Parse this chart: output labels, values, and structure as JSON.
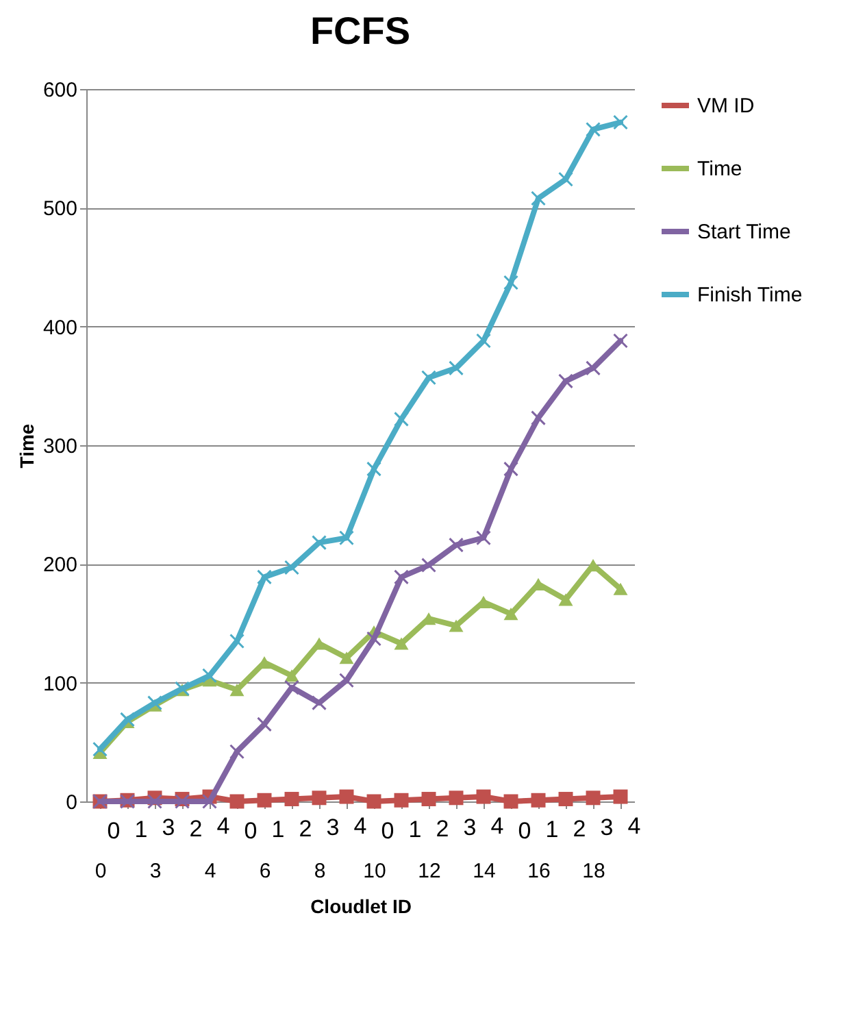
{
  "chart_data": {
    "type": "line",
    "title": "FCFS",
    "xlabel": "Cloudlet ID",
    "ylabel": "Time",
    "categories": [
      "0",
      null,
      "3",
      null,
      "4",
      null,
      "6",
      null,
      "8",
      null,
      "10",
      null,
      "12",
      null,
      "14",
      null,
      "16",
      null,
      "18",
      null
    ],
    "series": [
      {
        "name": "VM ID",
        "color": "#c0504d",
        "marker": "square",
        "values": [
          0,
          1,
          3,
          2,
          4,
          0,
          1,
          2,
          3,
          4,
          0,
          1,
          2,
          3,
          4,
          0,
          1,
          2,
          3,
          4
        ],
        "value_labels": [
          "0",
          "1",
          "3",
          "2",
          "4",
          "0",
          "1",
          "2",
          "3",
          "4",
          "0",
          "1",
          "2",
          "3",
          "4",
          "0",
          "1",
          "2",
          "3",
          "4"
        ]
      },
      {
        "name": "Time",
        "color": "#9bbb59",
        "marker": "triangle",
        "values": [
          41,
          67,
          81,
          94,
          102,
          94,
          117,
          106,
          133,
          121,
          143,
          133,
          154,
          148,
          168,
          158,
          183,
          170,
          199,
          179
        ]
      },
      {
        "name": "Start Time",
        "color": "#8064a2",
        "marker": "cross",
        "values": [
          0,
          0,
          0,
          0,
          0,
          42,
          65,
          96,
          83,
          102,
          137,
          189,
          199,
          216,
          222,
          280,
          323,
          354,
          365,
          388
        ]
      },
      {
        "name": "Finish Time",
        "color": "#4bacc6",
        "marker": "cross",
        "values": [
          44,
          69,
          83,
          95,
          106,
          135,
          189,
          197,
          218,
          222,
          280,
          322,
          357,
          365,
          388,
          437,
          508,
          524,
          566,
          572
        ]
      }
    ],
    "ylim": [
      0,
      600
    ],
    "yticks": [
      0,
      100,
      200,
      300,
      400,
      500,
      600
    ],
    "grid": "y",
    "legend": "right"
  }
}
